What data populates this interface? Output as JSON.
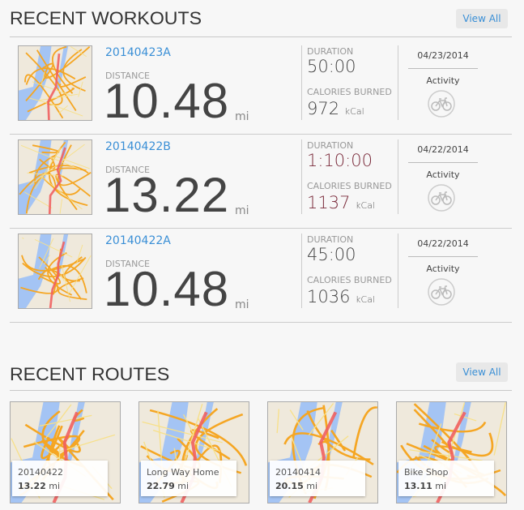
{
  "workouts": {
    "title": "RECENT WORKOUTS",
    "view_all": "View All",
    "labels": {
      "distance": "DISTANCE",
      "duration": "DURATION",
      "calories": "CALORIES BURNED",
      "unit": "mi",
      "kcal": "kCal",
      "activity": "Activity"
    },
    "items": [
      {
        "name": "20140423A",
        "distance": "10.48",
        "duration": "50:00",
        "calories": "972",
        "date": "04/23/2014",
        "activity_icon": "bicycle-icon",
        "value_color": "#444444"
      },
      {
        "name": "20140422B",
        "distance": "13.22",
        "duration": "1:10:00",
        "calories": "1137",
        "date": "04/22/2014",
        "activity_icon": "bicycle-icon",
        "value_color": "#7a2a3a"
      },
      {
        "name": "20140422A",
        "distance": "10.48",
        "duration": "45:00",
        "calories": "1036",
        "date": "04/22/2014",
        "activity_icon": "bicycle-icon",
        "value_color": "#444444"
      }
    ]
  },
  "routes": {
    "title": "RECENT ROUTES",
    "view_all": "View All",
    "unit": "mi",
    "items": [
      {
        "name": "20140422",
        "distance": "13.22"
      },
      {
        "name": "Long Way Home",
        "distance": "22.79"
      },
      {
        "name": "20140414",
        "distance": "20.15"
      },
      {
        "name": "Bike Shop",
        "distance": "13.11"
      }
    ]
  },
  "colors": {
    "accent": "#3a8fd6",
    "route": "#f06060",
    "water": "#a4c4f4",
    "road": "#f5a623"
  }
}
